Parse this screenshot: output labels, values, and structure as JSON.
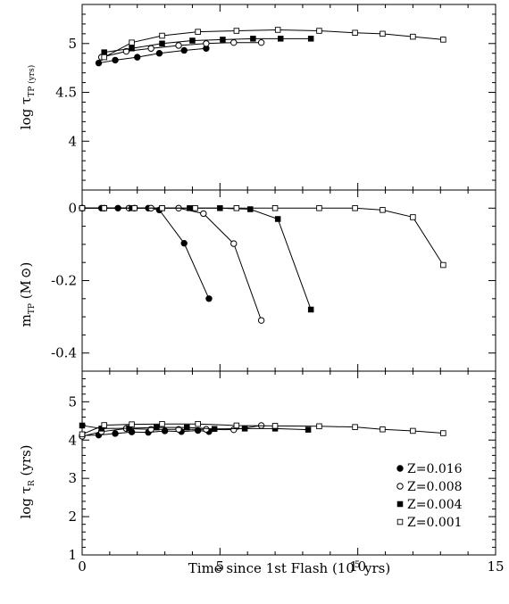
{
  "chart_data": {
    "type": "line",
    "figure": {
      "xlabel": "Time since 1st Flash (10",
      "xlabel_sup": "5",
      "xlabel_tail": " yrs)",
      "xlim": [
        0,
        15
      ],
      "xticks": [
        0,
        5,
        10,
        15
      ],
      "xtick_labels": [
        "0",
        "5",
        "10",
        "15"
      ]
    },
    "legend": {
      "placement": "bottom-right of bottom panel",
      "entries": [
        {
          "label": "Z=0.016",
          "marker": "filled-circle"
        },
        {
          "label": "Z=0.008",
          "marker": "open-circle"
        },
        {
          "label": "Z=0.004",
          "marker": "filled-square"
        },
        {
          "label": "Z=0.001",
          "marker": "open-square"
        }
      ]
    },
    "panels": [
      {
        "id": "top",
        "ylabel_main": "log τ",
        "ylabel_sub": "TP (yrs)",
        "ylim": [
          3.5,
          5.4
        ],
        "yticks": [
          4,
          4.5,
          5
        ],
        "ytick_labels": [
          "4",
          "4.5",
          "5"
        ],
        "series": [
          {
            "marker": "filled-circle",
            "x": [
              0.6,
              1.2,
              2.0,
              2.8,
              3.7,
              4.5
            ],
            "y": [
              4.8,
              4.83,
              4.86,
              4.9,
              4.93,
              4.95
            ]
          },
          {
            "marker": "open-circle",
            "x": [
              0.7,
              1.6,
              2.5,
              3.5,
              4.5,
              5.5,
              6.5
            ],
            "y": [
              4.86,
              4.92,
              4.95,
              4.98,
              5.0,
              5.01,
              5.01
            ]
          },
          {
            "marker": "filled-square",
            "x": [
              0.8,
              1.8,
              2.9,
              4.0,
              5.1,
              6.2,
              7.2,
              8.3
            ],
            "y": [
              4.91,
              4.95,
              5.0,
              5.03,
              5.04,
              5.05,
              5.05,
              5.05
            ]
          },
          {
            "marker": "open-square",
            "x": [
              0.8,
              1.8,
              2.9,
              4.2,
              5.6,
              7.1,
              8.6,
              9.9,
              10.9,
              12.0,
              13.1
            ],
            "y": [
              4.86,
              5.01,
              5.08,
              5.12,
              5.13,
              5.14,
              5.13,
              5.11,
              5.1,
              5.07,
              5.04
            ]
          }
        ]
      },
      {
        "id": "middle",
        "ylabel_main": "m",
        "ylabel_sub": "TP",
        "ylabel_tail": " (M",
        "ylabel_end": ")",
        "ylim": [
          -0.45,
          0.05
        ],
        "yticks": [
          0,
          -0.2,
          -0.4
        ],
        "ytick_labels": [
          "0",
          "-0.2",
          "-0.4"
        ],
        "series": [
          {
            "marker": "filled-circle",
            "x": [
              0,
              0.7,
              1.3,
              1.9,
              2.4,
              2.8,
              3.7,
              4.6
            ],
            "y": [
              0,
              0,
              0,
              0,
              0,
              -0.005,
              -0.097,
              -0.25
            ]
          },
          {
            "marker": "open-circle",
            "x": [
              0,
              0.8,
              1.7,
              2.5,
              3.5,
              4.4,
              5.5,
              6.5
            ],
            "y": [
              0,
              0,
              0,
              0,
              0,
              -0.015,
              -0.098,
              -0.31
            ]
          },
          {
            "marker": "filled-square",
            "x": [
              0,
              0.8,
              1.8,
              2.9,
              3.9,
              5.0,
              6.1,
              7.1,
              8.3
            ],
            "y": [
              0,
              0,
              0,
              0,
              0,
              0,
              -0.003,
              -0.03,
              -0.28
            ]
          },
          {
            "marker": "open-square",
            "x": [
              0,
              0.8,
              1.9,
              2.9,
              4.1,
              5.6,
              7.0,
              8.6,
              9.9,
              10.9,
              12.0,
              13.1
            ],
            "y": [
              0,
              0,
              0,
              0,
              0,
              0,
              0,
              0,
              0,
              -0.005,
              -0.025,
              -0.157
            ]
          }
        ]
      },
      {
        "id": "bottom",
        "ylabel_main": "log τ",
        "ylabel_sub": "R",
        "ylabel_tail": " (yrs)",
        "ylim": [
          1,
          5.8
        ],
        "yticks": [
          1,
          2,
          3,
          4,
          5
        ],
        "ytick_labels": [
          "1",
          "2",
          "3",
          "4",
          "5"
        ],
        "series": [
          {
            "marker": "filled-circle",
            "x": [
              0,
              0.6,
              1.2,
              1.8,
              2.4,
              3.0,
              3.6,
              4.2,
              4.6
            ],
            "y": [
              4.12,
              4.13,
              4.17,
              4.21,
              4.2,
              4.24,
              4.22,
              4.25,
              4.22
            ]
          },
          {
            "marker": "open-circle",
            "x": [
              0,
              0.7,
              1.6,
              2.5,
              3.5,
              4.5,
              5.5,
              6.5
            ],
            "y": [
              4.1,
              4.22,
              4.3,
              4.28,
              4.28,
              4.28,
              4.27,
              4.38
            ]
          },
          {
            "marker": "filled-square",
            "x": [
              0,
              0.7,
              1.7,
              2.7,
              3.8,
              4.8,
              5.9,
              7.0,
              8.2
            ],
            "y": [
              4.38,
              4.3,
              4.31,
              4.33,
              4.33,
              4.29,
              4.3,
              4.3,
              4.27
            ]
          },
          {
            "marker": "open-square",
            "x": [
              0,
              0.8,
              1.8,
              2.9,
              4.2,
              5.6,
              7.0,
              8.6,
              9.9,
              10.9,
              12.0,
              13.1
            ],
            "y": [
              4.15,
              4.39,
              4.41,
              4.42,
              4.42,
              4.38,
              4.37,
              4.36,
              4.34,
              4.28,
              4.24,
              4.18
            ]
          }
        ]
      }
    ]
  }
}
